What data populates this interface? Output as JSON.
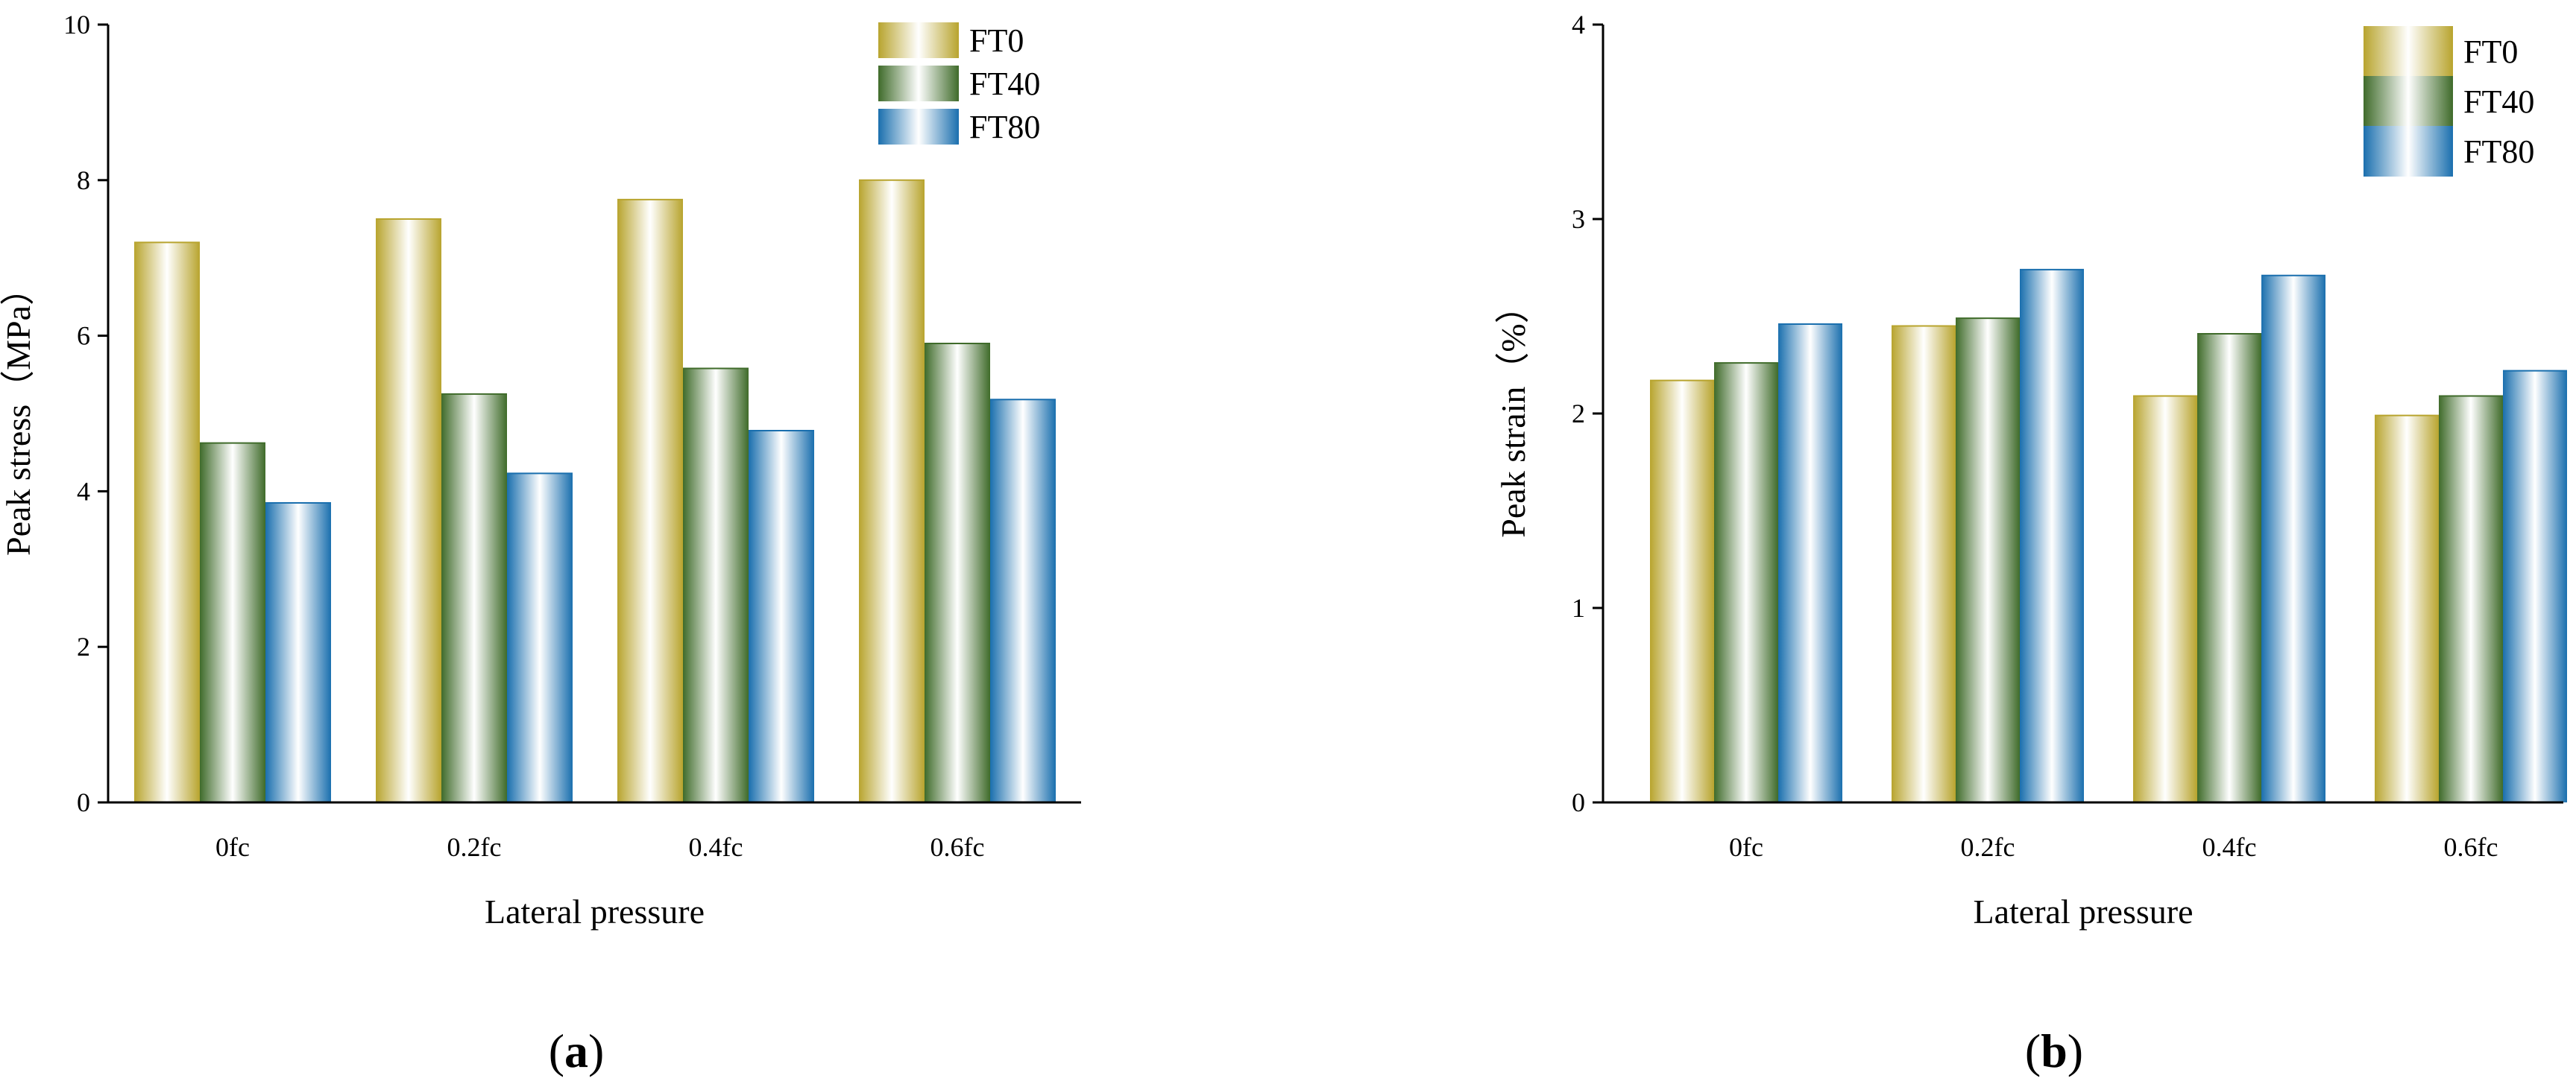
{
  "panels": [
    {
      "label_open": "(",
      "label_letter": "a",
      "label_close": ")"
    },
    {
      "label_open": "(",
      "label_letter": "b",
      "label_close": ")"
    }
  ],
  "chart_data": [
    {
      "type": "bar",
      "title": "",
      "xlabel": "Lateral pressure",
      "ylabel": "Peak stress（MPa）",
      "categories": [
        "0fc",
        "0.2fc",
        "0.4fc",
        "0.6fc"
      ],
      "ylim": [
        0,
        10
      ],
      "yticks": [
        0,
        2,
        4,
        6,
        8,
        10
      ],
      "legend_position": "top-right",
      "grid": false,
      "series": [
        {
          "name": "FT0",
          "values": [
            7.2,
            7.5,
            7.75,
            8.0
          ],
          "color": "#b8a42e"
        },
        {
          "name": "FT40",
          "values": [
            4.62,
            5.25,
            5.58,
            5.9
          ],
          "color": "#3f6b2a"
        },
        {
          "name": "FT80",
          "values": [
            3.85,
            4.23,
            4.78,
            5.18
          ],
          "color": "#1a6fae"
        }
      ]
    },
    {
      "type": "bar",
      "title": "",
      "xlabel": "Lateral pressure",
      "ylabel": "Peak strain（%）",
      "categories": [
        "0fc",
        "0.2fc",
        "0.4fc",
        "0.6fc"
      ],
      "ylim": [
        0,
        4
      ],
      "yticks": [
        0,
        1,
        2,
        3,
        4
      ],
      "legend_position": "top-right",
      "grid": false,
      "series": [
        {
          "name": "FT0",
          "values": [
            2.17,
            2.45,
            2.09,
            1.99
          ],
          "color": "#b8a42e"
        },
        {
          "name": "FT40",
          "values": [
            2.26,
            2.49,
            2.41,
            2.09
          ],
          "color": "#3f6b2a"
        },
        {
          "name": "FT80",
          "values": [
            2.46,
            2.74,
            2.71,
            2.22
          ],
          "color": "#1a6fae"
        }
      ]
    }
  ]
}
